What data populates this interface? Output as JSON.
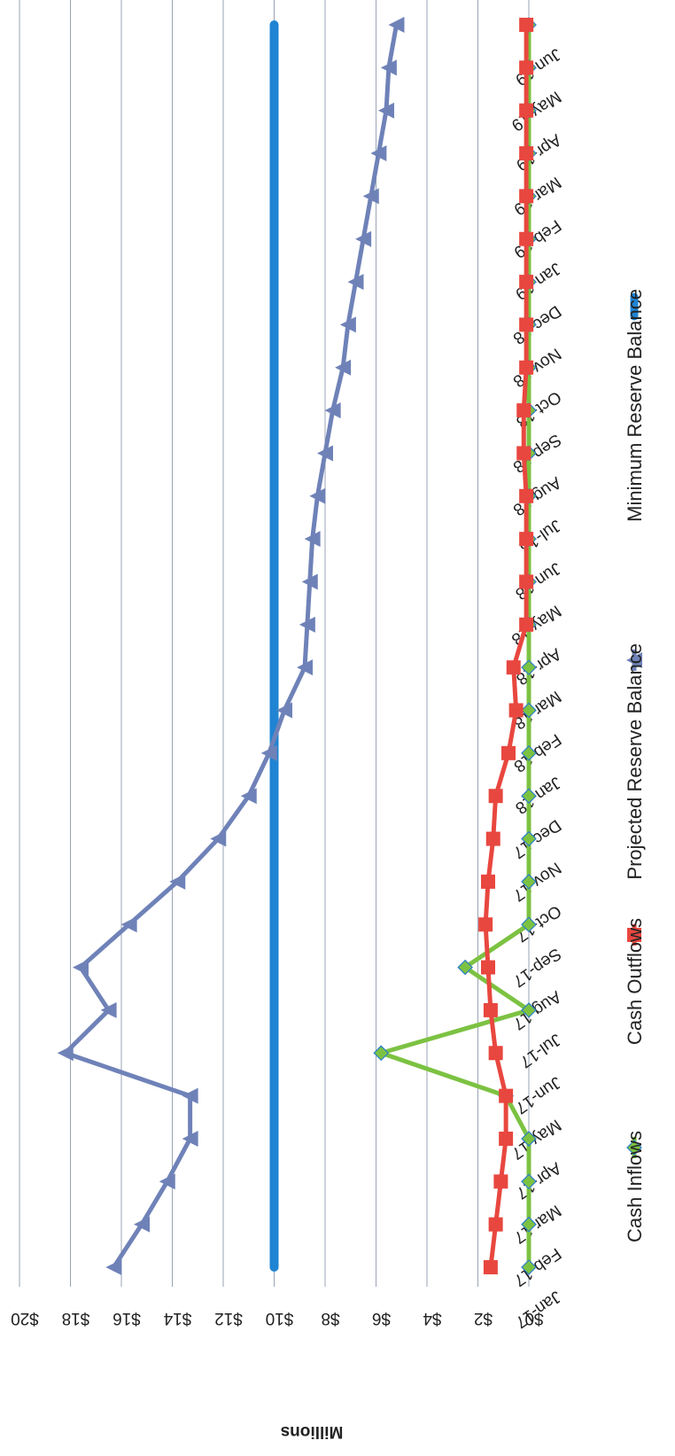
{
  "chart_data": {
    "type": "line",
    "orientation": "rotated 90 degrees clockwise",
    "ylabel": "Millions",
    "y_tick_labels": [
      "$0",
      "$2",
      "$4",
      "$6",
      "$8",
      "$10",
      "$12",
      "$14",
      "$16",
      "$18",
      "$20"
    ],
    "ylim": [
      0,
      20
    ],
    "grid": true,
    "legend_position": "bottom",
    "categories": [
      "Jan-17",
      "Feb-17",
      "Mar-17",
      "Apr-17",
      "May-17",
      "Jun-17",
      "Jul-17",
      "Aug-17",
      "Sep-17",
      "Oct-17",
      "Nov-17",
      "Dec-17",
      "Jan-18",
      "Feb-18",
      "Mar-18",
      "Apr-18",
      "May-18",
      "Jun-18",
      "Jul-18",
      "Aug-18",
      "Sep-18",
      "Oct-18",
      "Nov-18",
      "Dec-18",
      "Jan-19",
      "Feb-19",
      "Mar-19",
      "Apr-19",
      "May-19",
      "Jun-19"
    ],
    "series": [
      {
        "name": "Cash Inflows",
        "color": "#7cc242",
        "marker": "diamond",
        "values": [
          0,
          0,
          0,
          0,
          0.9,
          5.8,
          0,
          2.5,
          0,
          0,
          0,
          0,
          0,
          0,
          0,
          0,
          0,
          0,
          0,
          0,
          0,
          0,
          0,
          0,
          0,
          0,
          0,
          0,
          0,
          0
        ]
      },
      {
        "name": "Cash Outflows",
        "color": "#e8473f",
        "marker": "square",
        "values": [
          1.5,
          1.3,
          1.1,
          0.9,
          0.9,
          1.3,
          1.5,
          1.6,
          1.7,
          1.6,
          1.4,
          1.3,
          0.8,
          0.5,
          0.6,
          0.1,
          0.1,
          0.1,
          0.1,
          0.2,
          0.2,
          0.1,
          0.1,
          0.1,
          0.1,
          0.1,
          0.1,
          0.1,
          0.1,
          0.1
        ]
      },
      {
        "name": "Projected Reserve Balance",
        "color": "#6f82b8",
        "marker": "triangle",
        "values": [
          16.3,
          15.2,
          14.2,
          13.3,
          13.3,
          18.2,
          16.5,
          17.6,
          15.7,
          13.8,
          12.2,
          11.0,
          10.2,
          9.6,
          8.8,
          8.7,
          8.6,
          8.5,
          8.3,
          8.0,
          7.7,
          7.3,
          7.1,
          6.8,
          6.5,
          6.2,
          5.9,
          5.6,
          5.5,
          5.2
        ]
      },
      {
        "name": "Minimum Reserve Balance",
        "color": "#1f84d3",
        "marker": "none",
        "values": [
          10,
          10,
          10,
          10,
          10,
          10,
          10,
          10,
          10,
          10,
          10,
          10,
          10,
          10,
          10,
          10,
          10,
          10,
          10,
          10,
          10,
          10,
          10,
          10,
          10,
          10,
          10,
          10,
          10,
          10
        ]
      }
    ]
  }
}
